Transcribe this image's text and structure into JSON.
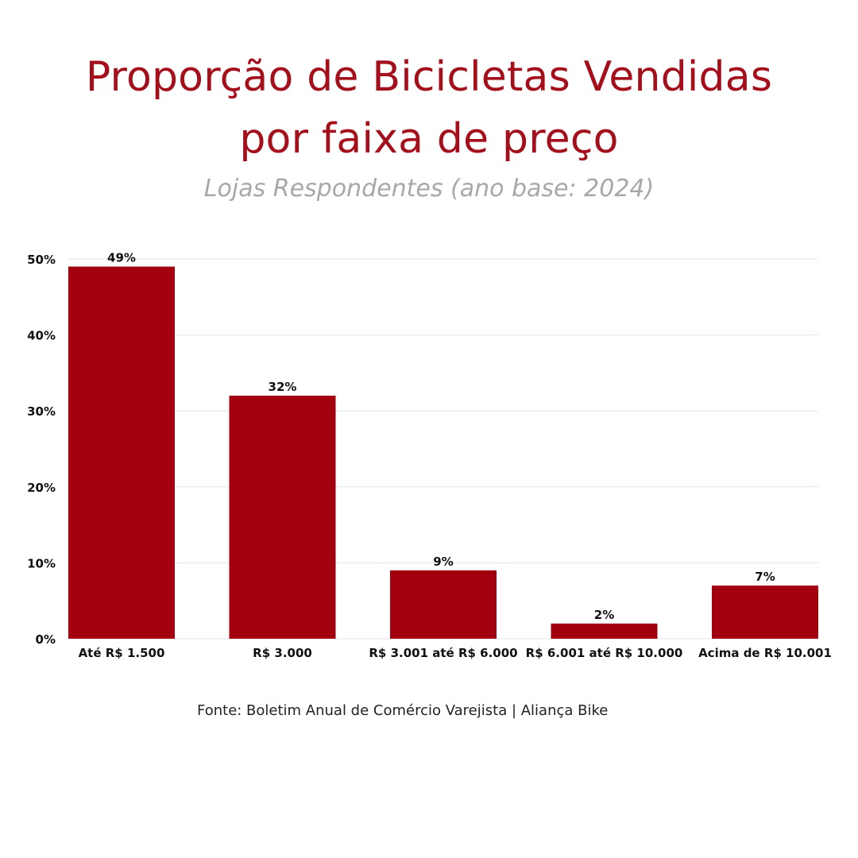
{
  "chart_data": {
    "type": "bar",
    "title": "Proporção de Bicicletas Vendidas por faixa de preço",
    "title_lines": [
      "Proporção de Bicicletas Vendidas",
      "por faixa de preço"
    ],
    "subtitle": "Lojas Respondentes (ano base: 2024)",
    "categories": [
      "Até R$ 1.500",
      "R$ 3.000",
      "R$ 3.001 até R$ 6.000",
      "R$ 6.001 até R$ 10.000",
      "Acima de R$ 10.001"
    ],
    "values": [
      49,
      32,
      9,
      2,
      7
    ],
    "value_labels": [
      "49%",
      "32%",
      "9%",
      "2%",
      "7%"
    ],
    "yticks": [
      0,
      10,
      20,
      30,
      40,
      50
    ],
    "ytick_labels": [
      "0%",
      "10%",
      "20%",
      "30%",
      "40%",
      "50%"
    ],
    "ylim": [
      0,
      50
    ],
    "xlabel": "",
    "ylabel": "",
    "grid": true,
    "legend": "none",
    "bar_color": "#a3000f",
    "title_color": "#a3101c",
    "subtitle_color": "#a8a8a8",
    "gridline_color": "#e4e4e4"
  },
  "source": "Fonte: Boletim Anual de Comércio Varejista | Aliança Bike"
}
